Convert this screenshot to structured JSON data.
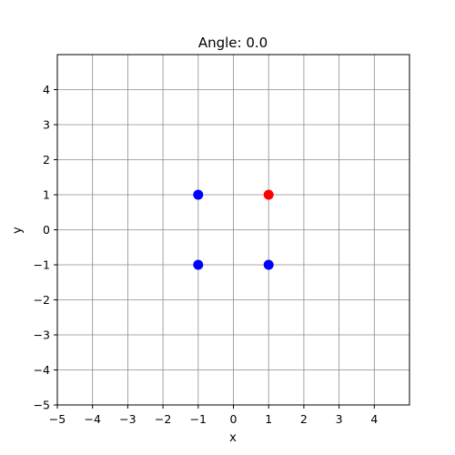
{
  "chart_data": {
    "type": "scatter",
    "title": "Angle: 0.0",
    "xlabel": "x",
    "ylabel": "y",
    "xlim": [
      -5,
      5
    ],
    "ylim": [
      -5,
      5
    ],
    "grid": true,
    "xticks": [
      -5,
      -4,
      -3,
      -2,
      -1,
      0,
      1,
      2,
      3,
      4
    ],
    "yticks": [
      -5,
      -4,
      -3,
      -2,
      -1,
      0,
      1,
      2,
      3,
      4
    ],
    "xtick_labels": [
      "−5",
      "−4",
      "−3",
      "−2",
      "−1",
      "0",
      "1",
      "2",
      "3",
      "4"
    ],
    "ytick_labels": [
      "−5",
      "−4",
      "−3",
      "−2",
      "−1",
      "0",
      "1",
      "2",
      "3",
      "4"
    ],
    "series": [
      {
        "color": "#0000ff",
        "points": [
          {
            "x": -1,
            "y": 1
          },
          {
            "x": -1,
            "y": -1
          },
          {
            "x": 1,
            "y": -1
          }
        ]
      },
      {
        "color": "#ff0000",
        "points": [
          {
            "x": 1,
            "y": 1
          }
        ]
      }
    ]
  }
}
